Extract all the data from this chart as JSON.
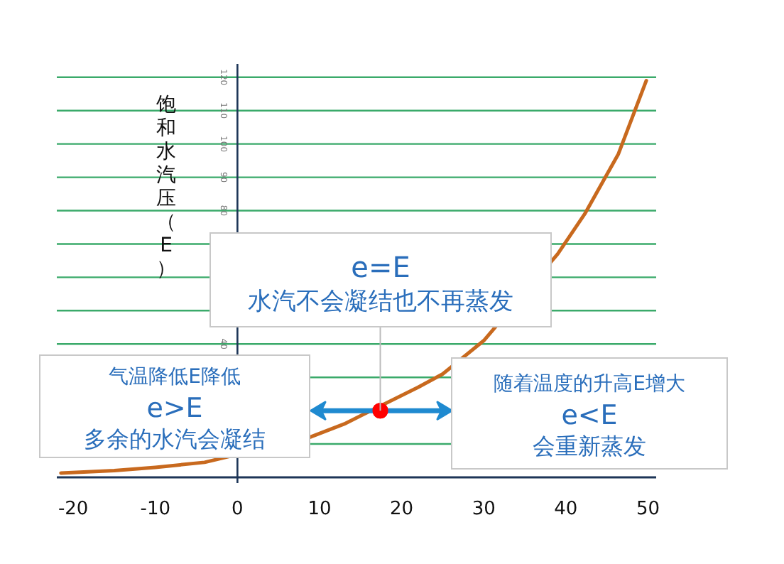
{
  "chart_data": {
    "type": "line",
    "ylabel": "饱和水汽压（E）",
    "x": [
      -21.5,
      -15,
      -10,
      -4,
      8.8,
      13,
      22,
      25,
      30,
      39,
      42.3,
      46.4,
      49.8
    ],
    "series": [
      {
        "color": "#c8691e",
        "values": [
          1.3,
          2,
          3,
          4.5,
          12,
          16,
          27,
          31,
          41,
          67,
          79,
          97,
          119
        ]
      },
      {
        "type": "scatter",
        "color": "#ff0000",
        "x": [
          17.4
        ],
        "values": [
          20
        ],
        "marker": "circle"
      }
    ],
    "xlim": [
      -22,
      51
    ],
    "ylim": [
      0,
      124
    ],
    "xticks": [
      -20,
      -10,
      0,
      10,
      20,
      30,
      40,
      50
    ],
    "yticks": [
      {
        "value": 0,
        "label": null
      },
      {
        "value": 10,
        "label": null
      },
      {
        "value": 30,
        "label": null
      },
      40,
      {
        "value": 50,
        "label": null
      },
      {
        "value": 60,
        "label": null
      },
      {
        "value": 70,
        "label": null
      },
      80,
      90,
      100,
      110,
      120
    ],
    "grid": "y",
    "annotations": [
      {
        "text": "e=E\n水汽不会凝结也不再蒸发",
        "x": 17.4,
        "y": 20
      },
      "气温降低E降低\ne>E\n多余的水汽会凝结",
      "随着温度的升高E增大\ne<E\n会重新蒸发"
    ]
  }
}
